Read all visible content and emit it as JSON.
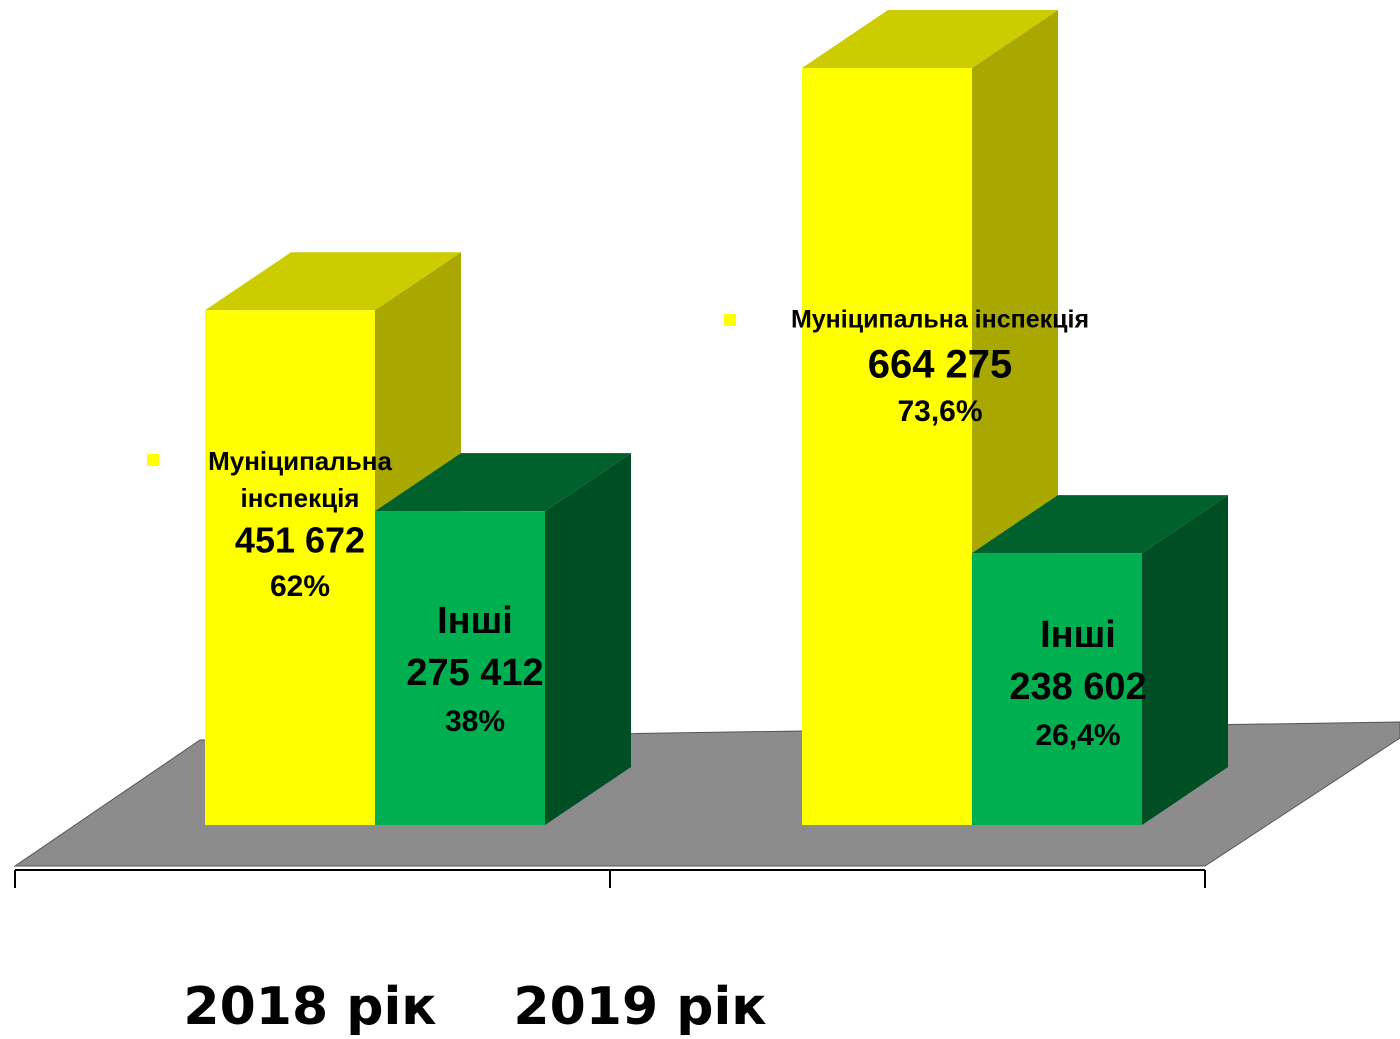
{
  "chart_data": {
    "type": "bar3d",
    "categories": [
      "2018 рік",
      "2019 рік"
    ],
    "series": [
      {
        "name": "Муніципальна інспекція",
        "color": "#ffff00",
        "values": [
          451672,
          664275
        ],
        "value_labels": [
          "451 672",
          "664 275"
        ],
        "shares": [
          62,
          73.6
        ],
        "share_labels": [
          "62%",
          "73,6%"
        ]
      },
      {
        "name": "Інші",
        "color": "#00b050",
        "values": [
          275412,
          238602
        ],
        "value_labels": [
          "275 412",
          "238 602"
        ],
        "shares": [
          38,
          26.4
        ],
        "share_labels": [
          "38%",
          "26,4%"
        ]
      }
    ]
  }
}
